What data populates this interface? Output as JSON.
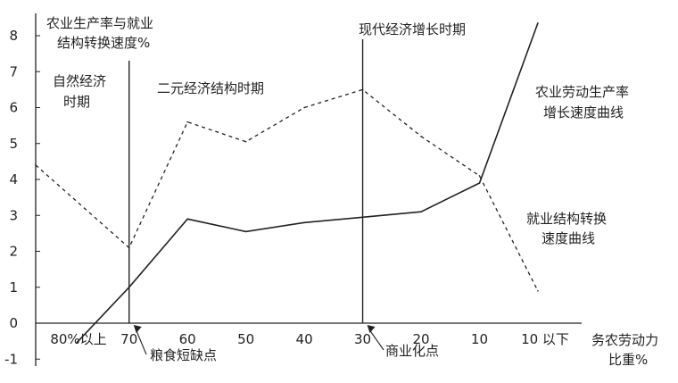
{
  "chart_data": {
    "type": "line",
    "ylabel": [
      "农业生产率与就业",
      "结构转换速度%"
    ],
    "xlabel": [
      "务农劳动力",
      "比重%"
    ],
    "ylim": [
      -1,
      8.4
    ],
    "y_ticks": [
      "-1",
      "0",
      "1",
      "2",
      "3",
      "4",
      "5",
      "6",
      "7",
      "8"
    ],
    "x_tick_labels": [
      "80%以上",
      "70",
      "60",
      "50",
      "40",
      "30",
      "20",
      "10",
      "10 以下"
    ],
    "x_positions": [
      80,
      70,
      60,
      50,
      40,
      30,
      20,
      10,
      0
    ],
    "xlim": [
      86,
      -2
    ],
    "series": [
      {
        "name": "农业劳动生产率增长速度曲线",
        "style": "solid",
        "x": [
          79,
          70,
          60,
          50,
          40,
          30,
          20,
          10,
          0
        ],
        "y": [
          -0.55,
          1.0,
          2.9,
          2.55,
          2.8,
          2.95,
          3.1,
          3.9,
          8.35
        ]
      },
      {
        "name": "就业结构转换速度曲线",
        "style": "dashed",
        "x": [
          86,
          70,
          60,
          50,
          40,
          30,
          20,
          10,
          0
        ],
        "y": [
          4.4,
          2.1,
          5.6,
          5.05,
          6.0,
          6.5,
          5.2,
          4.1,
          0.9
        ]
      }
    ],
    "series_labels": [
      [
        "农业劳动生产率",
        "增长速度曲线"
      ],
      [
        "就业结构转换",
        "速度曲线"
      ]
    ],
    "period_dividers": [
      70,
      30
    ],
    "periods": [
      [
        "自然经济",
        "时期"
      ],
      [
        "二元经济结构时期"
      ],
      [
        "现代经济增长时期"
      ]
    ],
    "point_labels": [
      {
        "label": "粮食短缺点",
        "x": 70
      },
      {
        "label": "商业化点",
        "x": 30
      }
    ],
    "grid": false,
    "colors": {
      "line": "#222222",
      "background": "#ffffff"
    }
  }
}
